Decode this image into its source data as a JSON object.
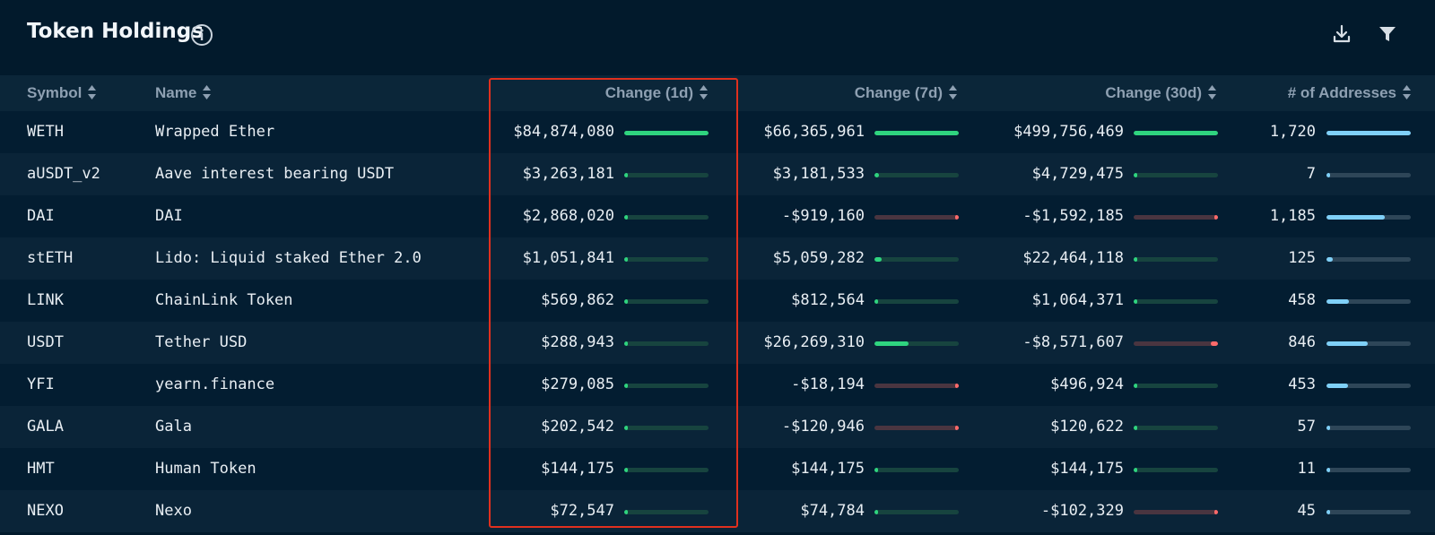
{
  "header": {
    "title": "Token Holdings",
    "info_icon": "info-circle-icon",
    "download_icon": "download-icon",
    "filter_icon": "filter-icon"
  },
  "colors": {
    "background": "#021a2c",
    "header_row": "#0b2639",
    "positive": "#2fd47f",
    "negative": "#ff6a6a",
    "count": "#7fd0f8",
    "highlight": "#e0301e"
  },
  "columns": {
    "symbol": "Symbol",
    "name": "Name",
    "change_1d": "Change (1d)",
    "change_7d": "Change (7d)",
    "change_30d": "Change (30d)",
    "addresses": "# of Addresses"
  },
  "rows": [
    {
      "symbol": "WETH",
      "name": "Wrapped Ether",
      "change_1d": "$84,874,080",
      "change_7d": "$66,365,961",
      "change_30d": "$499,756,469",
      "addresses": "1,720",
      "bar_1d": 1.0,
      "bar_7d": 1.0,
      "bar_30d": 1.0,
      "bar_addr": 1.0
    },
    {
      "symbol": "aUSDT_v2",
      "name": "Aave interest bearing USDT",
      "change_1d": "$3,263,181",
      "change_7d": "$3,181,533",
      "change_30d": "$4,729,475",
      "addresses": "7",
      "bar_1d": 0.04,
      "bar_7d": 0.05,
      "bar_30d": 0.01,
      "bar_addr": 0.005
    },
    {
      "symbol": "DAI",
      "name": "DAI",
      "change_1d": "$2,868,020",
      "change_7d": "-$919,160",
      "change_30d": "-$1,592,185",
      "addresses": "1,185",
      "bar_1d": 0.03,
      "bar_7d": -0.02,
      "bar_30d": -0.01,
      "bar_addr": 0.69
    },
    {
      "symbol": "stETH",
      "name": "Lido: Liquid staked Ether 2.0",
      "change_1d": "$1,051,841",
      "change_7d": "$5,059,282",
      "change_30d": "$22,464,118",
      "addresses": "125",
      "bar_1d": 0.015,
      "bar_7d": 0.08,
      "bar_30d": 0.045,
      "bar_addr": 0.07
    },
    {
      "symbol": "LINK",
      "name": "ChainLink Token",
      "change_1d": "$569,862",
      "change_7d": "$812,564",
      "change_30d": "$1,064,371",
      "addresses": "458",
      "bar_1d": 0.007,
      "bar_7d": 0.012,
      "bar_30d": 0.002,
      "bar_addr": 0.27
    },
    {
      "symbol": "USDT",
      "name": "Tether USD",
      "change_1d": "$288,943",
      "change_7d": "$26,269,310",
      "change_30d": "-$8,571,607",
      "addresses": "846",
      "bar_1d": 0.004,
      "bar_7d": 0.4,
      "bar_30d": -0.08,
      "bar_addr": 0.49
    },
    {
      "symbol": "YFI",
      "name": "yearn.finance",
      "change_1d": "$279,085",
      "change_7d": "-$18,194",
      "change_30d": "$496,924",
      "addresses": "453",
      "bar_1d": 0.003,
      "bar_7d": -0.002,
      "bar_30d": 0.001,
      "bar_addr": 0.26
    },
    {
      "symbol": "GALA",
      "name": "Gala",
      "change_1d": "$202,542",
      "change_7d": "-$120,946",
      "change_30d": "$120,622",
      "addresses": "57",
      "bar_1d": 0.002,
      "bar_7d": -0.002,
      "bar_30d": 0.0003,
      "bar_addr": 0.03
    },
    {
      "symbol": "HMT",
      "name": "Human Token",
      "change_1d": "$144,175",
      "change_7d": "$144,175",
      "change_30d": "$144,175",
      "addresses": "11",
      "bar_1d": 0.002,
      "bar_7d": 0.002,
      "bar_30d": 0.0003,
      "bar_addr": 0.006
    },
    {
      "symbol": "NEXO",
      "name": "Nexo",
      "change_1d": "$72,547",
      "change_7d": "$74,784",
      "change_30d": "-$102,329",
      "addresses": "45",
      "bar_1d": 0.001,
      "bar_7d": 0.001,
      "bar_30d": -0.001,
      "bar_addr": 0.026
    }
  ]
}
